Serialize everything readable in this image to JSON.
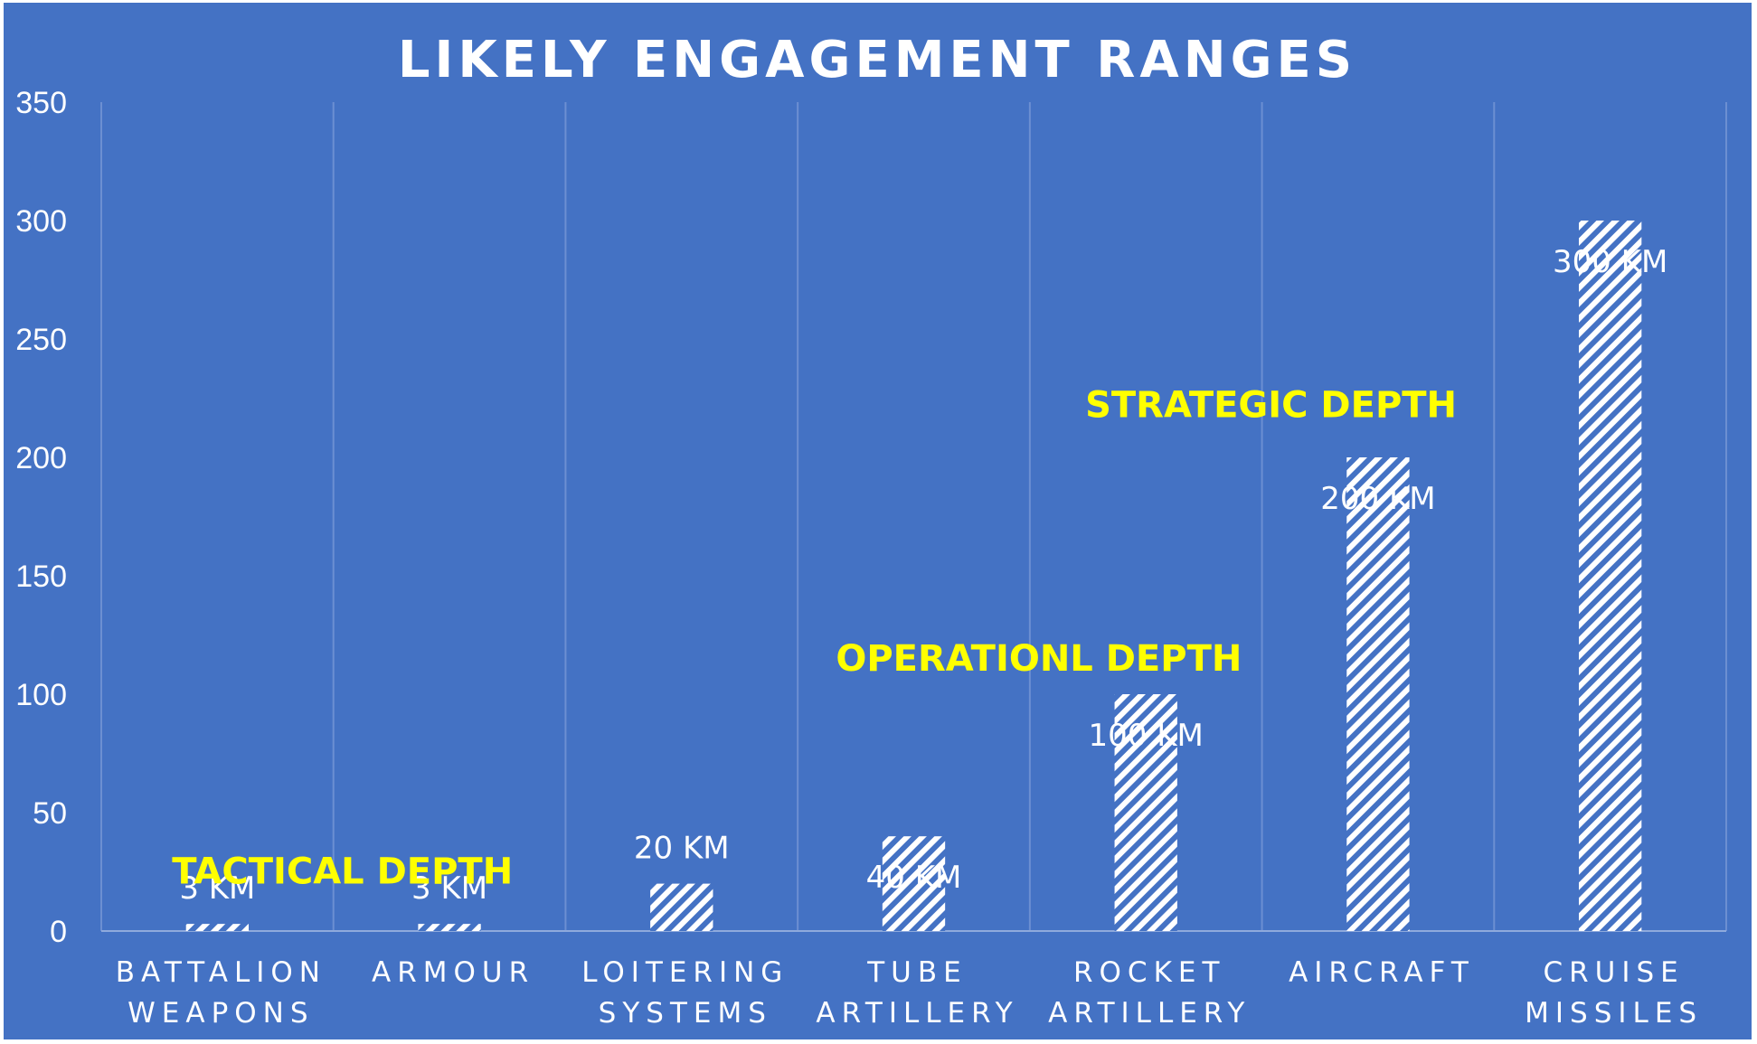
{
  "chart_data": {
    "type": "bar",
    "title": "LIKELY ENGAGEMENT RANGES",
    "categories": [
      [
        "BATTALION",
        "WEAPONS"
      ],
      [
        "ARMOUR"
      ],
      [
        "LOITERING",
        "SYSTEMS"
      ],
      [
        "TUBE",
        "ARTILLERY"
      ],
      [
        "ROCKET",
        "ARTILLERY"
      ],
      [
        "AIRCRAFT"
      ],
      [
        "CRUISE",
        "MISSILES"
      ]
    ],
    "values": [
      3,
      3,
      20,
      40,
      100,
      200,
      300
    ],
    "data_labels": [
      "3 KM",
      "3 KM",
      "20 KM",
      "40 KM",
      "100 KM",
      "200 KM",
      "300 KM"
    ],
    "ylim": [
      0,
      350
    ],
    "yticks": [
      0,
      50,
      100,
      150,
      200,
      250,
      300,
      350
    ],
    "xlabel": "",
    "ylabel": "",
    "grid": "vertical",
    "annotations": [
      {
        "text": "TACTICAL DEPTH",
        "near_category": 1,
        "value": 20
      },
      {
        "text": "OPERATIONL DEPTH",
        "near_category": 4,
        "value": 110
      },
      {
        "text": "STRATEGIC DEPTH",
        "near_category": 5,
        "value": 217
      }
    ],
    "colors": {
      "background": "#4472C4",
      "bar_stripe": "#ffffff",
      "annotation": "#FFFF00",
      "text": "#ffffff"
    }
  }
}
